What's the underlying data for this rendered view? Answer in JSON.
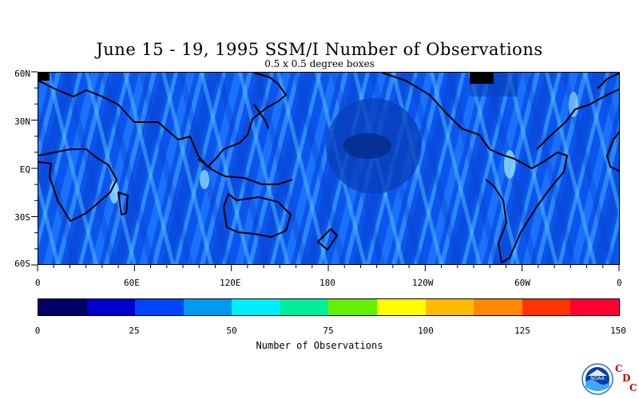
{
  "title": "June 15 - 19, 1995 SSM/I Number of Observations",
  "subtitle": "0.5 x 0.5 degree boxes",
  "lat_labels": [
    "60N",
    "30N",
    "EQ",
    "30S",
    "60S"
  ],
  "lon_labels": [
    "0",
    "60E",
    "120E",
    "180",
    "120W",
    "60W",
    "0"
  ],
  "colorbar": {
    "title": "Number of Observations",
    "tick_labels": [
      "0",
      "25",
      "50",
      "75",
      "100",
      "125",
      "150"
    ],
    "colors": [
      "#000066",
      "#0000cc",
      "#0044ff",
      "#0099ee",
      "#00eeff",
      "#00ee99",
      "#66ee00",
      "#ffff00",
      "#ffbb00",
      "#ff8800",
      "#ff3300",
      "#ff0033"
    ]
  },
  "logo": {
    "icon": "noaa-logo-icon",
    "text": "NOAA",
    "cdc_letters": [
      "C",
      "D",
      "C"
    ]
  }
}
